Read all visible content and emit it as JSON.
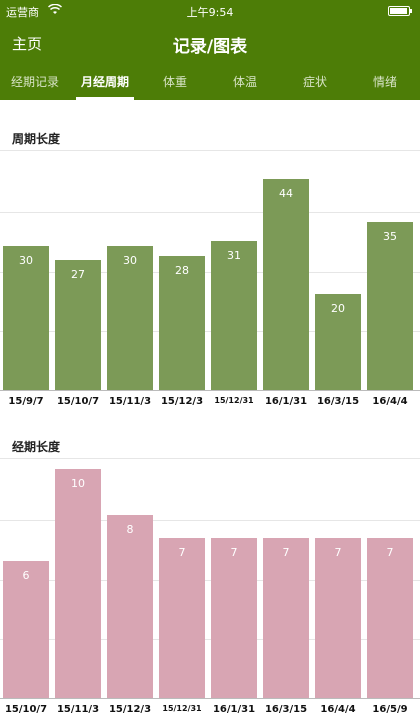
{
  "status_bar": {
    "carrier": "运营商",
    "time": "上午9:54"
  },
  "nav": {
    "back_label": "主页",
    "title": "记录/图表"
  },
  "tabs": [
    {
      "label": "经期记录",
      "active": false
    },
    {
      "label": "月经周期",
      "active": true
    },
    {
      "label": "体重",
      "active": false
    },
    {
      "label": "体温",
      "active": false
    },
    {
      "label": "症状",
      "active": false
    },
    {
      "label": "情绪",
      "active": false
    }
  ],
  "colors": {
    "header_green": "#4d7d07",
    "cycle_bar": "#7c9a57",
    "period_bar": "#d8a5b3"
  },
  "chart_data": [
    {
      "type": "bar",
      "title": "周期长度",
      "categories": [
        "15/9/7",
        "15/10/7",
        "15/11/3",
        "15/12/3",
        "15/12/31",
        "16/1/31",
        "16/3/15",
        "16/4/4"
      ],
      "values": [
        30,
        27,
        30,
        28,
        31,
        44,
        20,
        35
      ],
      "ylim": [
        0,
        50
      ],
      "grid": true
    },
    {
      "type": "bar",
      "title": "经期长度",
      "categories": [
        "15/10/7",
        "15/11/3",
        "15/12/3",
        "15/12/31",
        "16/1/31",
        "16/3/15",
        "16/4/4",
        "16/5/9"
      ],
      "values": [
        6,
        10,
        8,
        7,
        7,
        7,
        7,
        7
      ],
      "ylim": [
        0,
        10.5
      ],
      "grid": true
    }
  ]
}
